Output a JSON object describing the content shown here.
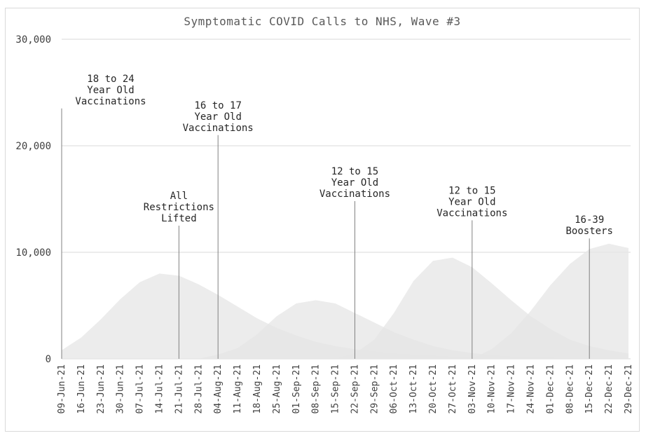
{
  "chart_data": {
    "type": "area",
    "title": "Symptomatic COVID Calls to NHS, Wave #3",
    "xlabel": "",
    "ylabel": "",
    "ylim": [
      0,
      30000
    ],
    "yticks": [
      0,
      10000,
      20000,
      30000
    ],
    "ytick_labels": [
      "0",
      "10,000",
      "20,000",
      "30,000"
    ],
    "grid": true,
    "legend": "none",
    "categories": [
      "09-Jun-21",
      "16-Jun-21",
      "23-Jun-21",
      "30-Jun-21",
      "07-Jul-21",
      "14-Jul-21",
      "21-Jul-21",
      "28-Jul-21",
      "04-Aug-21",
      "11-Aug-21",
      "18-Aug-21",
      "25-Aug-21",
      "01-Sep-21",
      "08-Sep-21",
      "15-Sep-21",
      "22-Sep-21",
      "29-Sep-21",
      "06-Oct-21",
      "13-Oct-21",
      "20-Oct-21",
      "27-Oct-21",
      "03-Nov-21",
      "10-Nov-21",
      "17-Nov-21",
      "24-Nov-21",
      "01-Dec-21",
      "08-Dec-21",
      "15-Dec-21",
      "22-Dec-21",
      "29-Dec-21"
    ],
    "series": [
      {
        "color": "#e6e6e6",
        "values": [
          800,
          2000,
          3700,
          5600,
          7200,
          8000,
          7800,
          7000,
          6000,
          4900,
          3800,
          2900,
          2200,
          1600,
          1200,
          900,
          700,
          500,
          400,
          300,
          200,
          150,
          100,
          80,
          60,
          50,
          40,
          30,
          20,
          10
        ]
      },
      {
        "color": "#e6e6e6",
        "values": [
          0,
          0,
          0,
          0,
          0,
          0,
          0,
          0,
          400,
          1000,
          2300,
          4000,
          5200,
          5500,
          5200,
          4300,
          3400,
          2500,
          1800,
          1200,
          800,
          550,
          350,
          220,
          150,
          100,
          60,
          40,
          20,
          10
        ]
      },
      {
        "color": "#e6e6e6",
        "values": [
          0,
          0,
          0,
          0,
          0,
          0,
          0,
          0,
          0,
          0,
          0,
          0,
          0,
          0,
          0,
          500,
          1800,
          4300,
          7300,
          9200,
          9500,
          8600,
          7100,
          5500,
          4000,
          2800,
          1800,
          1200,
          800,
          500
        ]
      },
      {
        "color": "#e6e6e6",
        "values": [
          0,
          0,
          0,
          0,
          0,
          0,
          0,
          0,
          0,
          0,
          0,
          0,
          0,
          0,
          0,
          0,
          0,
          0,
          0,
          0,
          0,
          0,
          900,
          2400,
          4500,
          6900,
          8900,
          10300,
          10800,
          10400
        ]
      }
    ],
    "annotations": [
      {
        "lines": [
          "18 to 24",
          "Year Old",
          "Vaccinations"
        ],
        "x": "09-Jun-21",
        "y_top": 23500
      },
      {
        "lines": [
          "All",
          "Restrictions",
          "Lifted"
        ],
        "x": "21-Jul-21",
        "y_top": 12500
      },
      {
        "lines": [
          "16 to 17",
          "Year Old",
          "Vaccinations"
        ],
        "x": "04-Aug-21",
        "y_top": 21000
      },
      {
        "lines": [
          "12 to 15",
          "Year Old",
          "Vaccinations"
        ],
        "x": "22-Sep-21",
        "y_top": 14800
      },
      {
        "lines": [
          "12 to 15",
          "Year Old",
          "Vaccinations"
        ],
        "x": "03-Nov-21",
        "y_top": 13000
      },
      {
        "lines": [
          "16-39",
          "Boosters"
        ],
        "x": "15-Dec-21",
        "y_top": 11300
      }
    ]
  }
}
